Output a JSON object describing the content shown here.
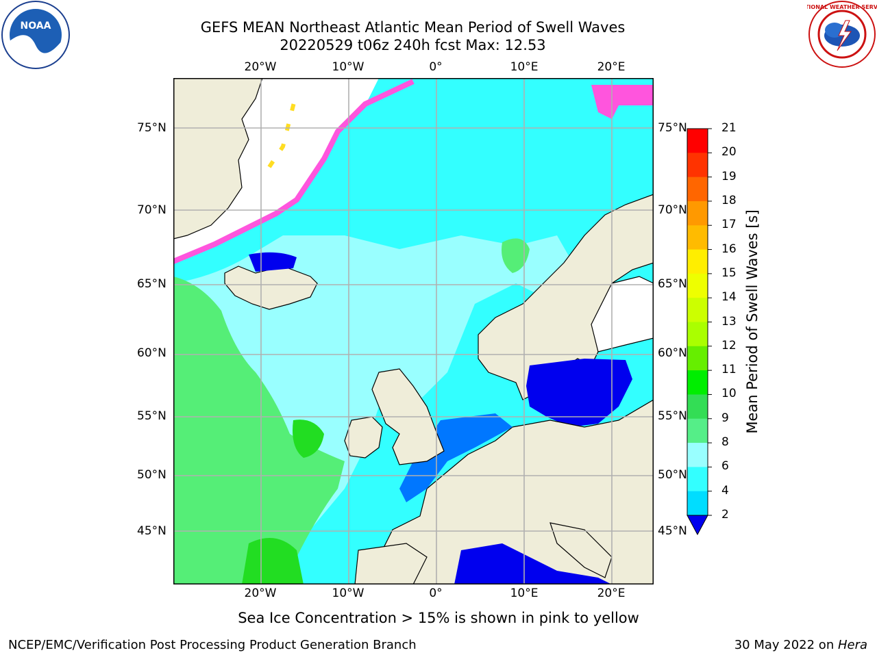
{
  "header": {
    "title_line1": "GEFS MEAN Northeast Atlantic Mean Period of Swell Waves",
    "title_line2": "20220529 t06z 240h fcst   Max: 12.53"
  },
  "logos": {
    "left_text": "NOAA",
    "right_text": "NATIONAL WEATHER SERVICE"
  },
  "map": {
    "lon_labels": [
      "20°W",
      "10°W",
      "0°",
      "10°E",
      "20°E"
    ],
    "lat_labels": [
      "75°N",
      "70°N",
      "65°N",
      "60°N",
      "55°N",
      "50°N",
      "45°N"
    ],
    "colors": {
      "land": "#efedd9",
      "ocean_light": "#99ffff",
      "ocean_mid": "#33ffff",
      "ocean_dark": "#0077ff",
      "ocean_deep": "#0000ee",
      "green_light": "#55ee77",
      "green": "#22dd22",
      "ice_pink": "#ff55dd",
      "ice_yellow": "#ffdd22",
      "grid": "#b0b0b0"
    }
  },
  "colorbar": {
    "label": "Mean Period of Swell Waves [s]",
    "ticks": [
      "21",
      "20",
      "19",
      "18",
      "17",
      "16",
      "15",
      "14",
      "13",
      "12",
      "11",
      "10",
      "9",
      "8",
      "6",
      "4",
      "2"
    ],
    "colors": [
      "#ff0000",
      "#ff3300",
      "#ff6600",
      "#ff9900",
      "#ffbb00",
      "#ffee00",
      "#eeff00",
      "#ccff00",
      "#aaff00",
      "#66ee00",
      "#00ee00",
      "#33dd55",
      "#55ee88",
      "#99ffff",
      "#33ffff",
      "#00ddff",
      "#0077ff"
    ],
    "extend_color": "#0000ee"
  },
  "footer": {
    "note": "Sea Ice Concentration > 15% is shown in pink to yellow",
    "left": "NCEP/EMC/Verification Post Processing Product Generation Branch",
    "right_date": "30 May 2022 on ",
    "right_host": "Hera"
  }
}
